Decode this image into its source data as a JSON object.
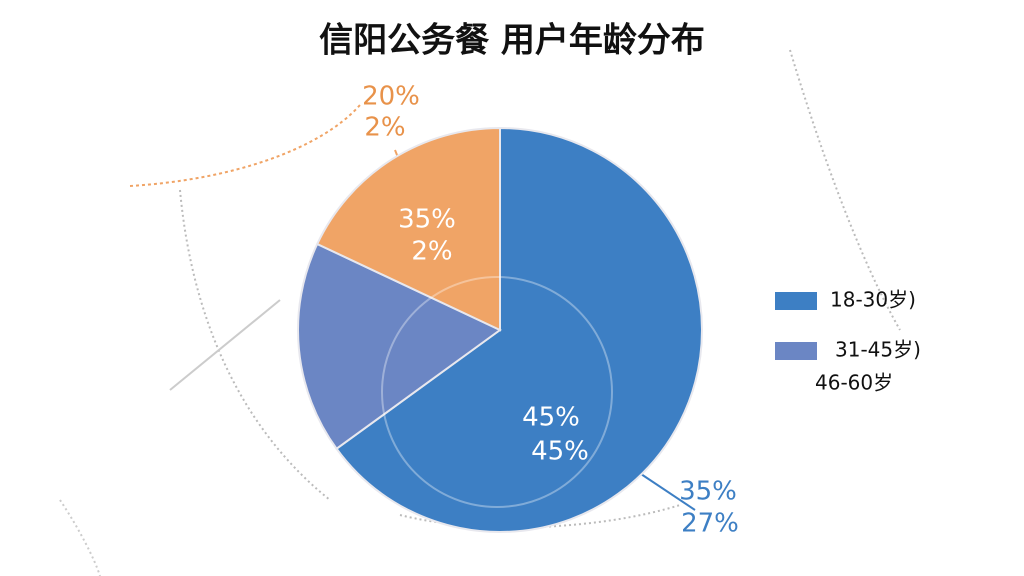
{
  "chart_data": {
    "type": "pie",
    "title": "信阳公务餐  用户年龄分布",
    "categories": [
      "18-30岁)",
      "31-45岁)",
      "46-60岁"
    ],
    "values": [
      65,
      17,
      18
    ],
    "colors": [
      "#3d7fc4",
      "#6b86c4",
      "#f0a466"
    ],
    "annotations": [
      "45%",
      "45%",
      "35%",
      "2%",
      "20%",
      "2%",
      "35%",
      "27%"
    ]
  }
}
